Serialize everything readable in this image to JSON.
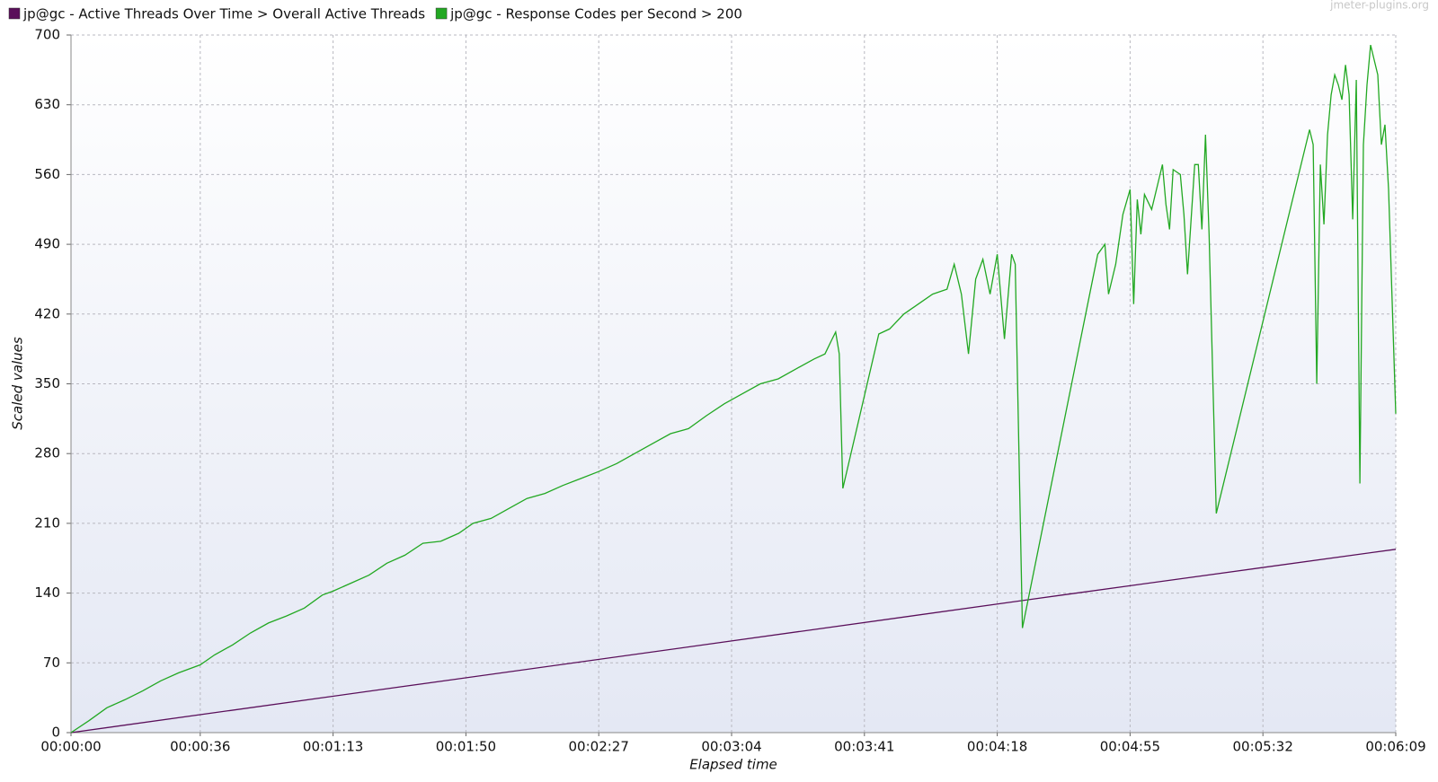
{
  "chart_data": {
    "type": "line",
    "watermark": "jmeter-plugins.org",
    "xlabel": "Elapsed time",
    "ylabel": "Scaled values",
    "xlim": [
      0,
      369
    ],
    "ylim": [
      0,
      700
    ],
    "xticks": [
      {
        "value": 0,
        "label": "00:00:00"
      },
      {
        "value": 36,
        "label": "00:00:36"
      },
      {
        "value": 73,
        "label": "00:01:13"
      },
      {
        "value": 110,
        "label": "00:01:50"
      },
      {
        "value": 147,
        "label": "00:02:27"
      },
      {
        "value": 184,
        "label": "00:03:04"
      },
      {
        "value": 221,
        "label": "00:03:41"
      },
      {
        "value": 258,
        "label": "00:04:18"
      },
      {
        "value": 295,
        "label": "00:04:55"
      },
      {
        "value": 332,
        "label": "00:05:32"
      },
      {
        "value": 369,
        "label": "00:06:09"
      }
    ],
    "yticks": [
      0,
      70,
      140,
      210,
      280,
      350,
      420,
      490,
      560,
      630,
      700
    ],
    "grid": true,
    "legend": "top",
    "series": [
      {
        "name": "jp@gc - Active Threads Over Time > Overall Active Threads",
        "color": "#5a0f5a",
        "x": [
          0,
          92,
          184,
          276,
          369
        ],
        "values": [
          0,
          46,
          92,
          138,
          184
        ]
      },
      {
        "name": "jp@gc - Response Codes per Second > 200",
        "color": "#22a822",
        "x": [
          0,
          5,
          10,
          15,
          20,
          25,
          30,
          36,
          40,
          45,
          50,
          55,
          60,
          65,
          70,
          73,
          78,
          83,
          88,
          93,
          98,
          103,
          108,
          112,
          117,
          122,
          127,
          132,
          137,
          142,
          147,
          152,
          157,
          162,
          167,
          172,
          177,
          182,
          187,
          192,
          197,
          202,
          207,
          210,
          212,
          213,
          214,
          215,
          225,
          228,
          232,
          236,
          240,
          244,
          246,
          248,
          250,
          252,
          254,
          256,
          258,
          260,
          262,
          263,
          265,
          286,
          288,
          289,
          291,
          293,
          295,
          296,
          297,
          298,
          299,
          301,
          303,
          304,
          305,
          306,
          307,
          309,
          310,
          311,
          313,
          314,
          315,
          316,
          317,
          319,
          345,
          346,
          347,
          348,
          349,
          350,
          351,
          352,
          353,
          354,
          355,
          356,
          357,
          358,
          359,
          360,
          361,
          362,
          364,
          365,
          366,
          367,
          369
        ],
        "values": [
          0,
          12,
          25,
          33,
          42,
          52,
          60,
          68,
          78,
          88,
          100,
          110,
          117,
          125,
          138,
          142,
          150,
          158,
          170,
          178,
          190,
          192,
          200,
          210,
          215,
          225,
          235,
          240,
          248,
          255,
          262,
          270,
          280,
          290,
          300,
          305,
          318,
          330,
          340,
          350,
          355,
          365,
          375,
          380,
          395,
          402,
          380,
          245,
          400,
          405,
          420,
          430,
          440,
          445,
          470,
          440,
          380,
          455,
          475,
          440,
          480,
          395,
          480,
          470,
          105,
          480,
          490,
          440,
          470,
          520,
          545,
          430,
          535,
          500,
          540,
          525,
          555,
          570,
          530,
          505,
          565,
          560,
          520,
          460,
          570,
          570,
          505,
          600,
          500,
          220,
          605,
          590,
          350,
          570,
          510,
          600,
          640,
          660,
          650,
          635,
          670,
          640,
          515,
          655,
          250,
          590,
          650,
          690,
          660,
          590,
          610,
          545,
          320
        ]
      }
    ]
  }
}
